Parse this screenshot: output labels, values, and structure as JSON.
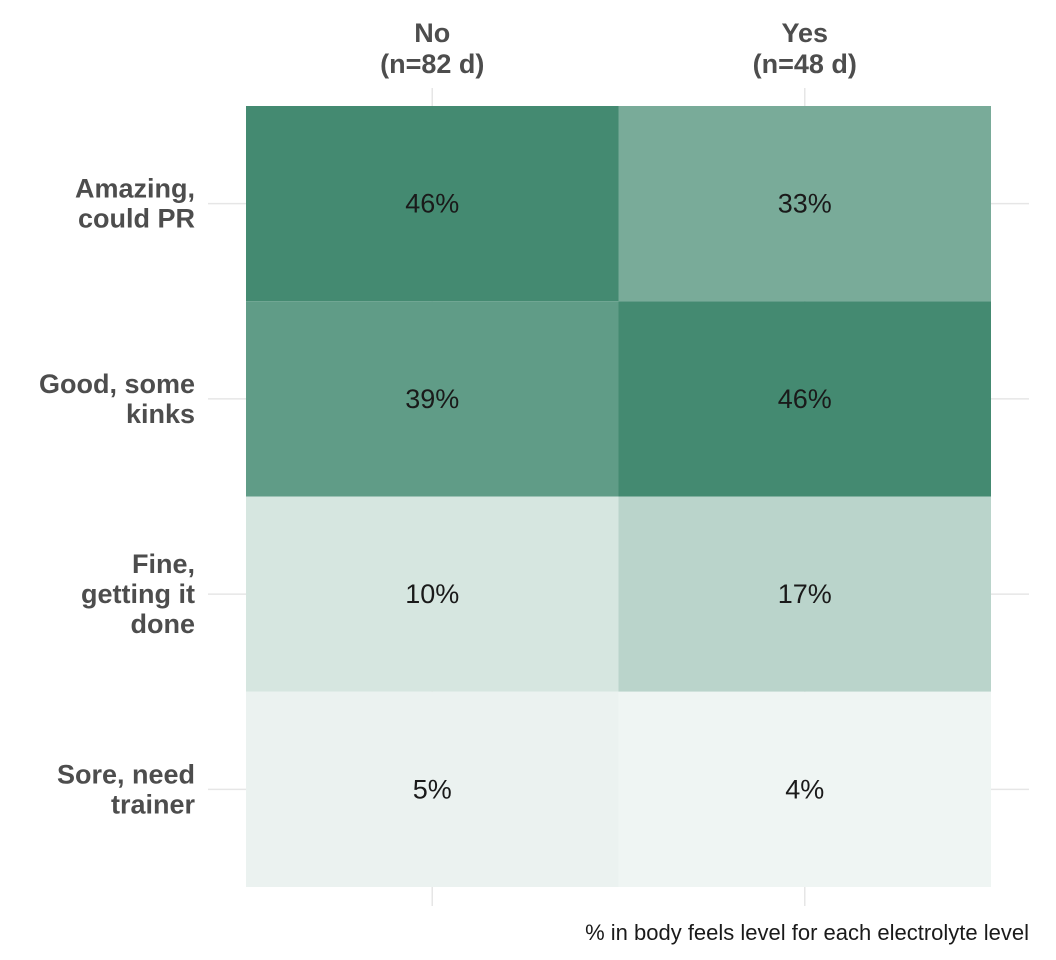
{
  "chart_data": {
    "type": "heatmap",
    "columns": [
      "No\n(n=82 d)",
      "Yes\n(n=48 d)"
    ],
    "rows": [
      "Amazing,\ncould PR",
      "Good, some\nkinks",
      "Fine,\ngetting it\ndone",
      "Sore, need\ntrainer"
    ],
    "values": [
      [
        46,
        33
      ],
      [
        39,
        46
      ],
      [
        10,
        17
      ],
      [
        5,
        4
      ]
    ],
    "value_suffix": "%",
    "value_range": [
      0,
      46
    ],
    "caption": "% in body feels level for each electrolyte level",
    "colors": {
      "high": "#448a71",
      "low": "#ffffff",
      "gridline": "#e6e6e6",
      "label": "#4d4d4d",
      "cell_text": "#1a1a1a"
    },
    "legend": "none",
    "grid": true
  }
}
